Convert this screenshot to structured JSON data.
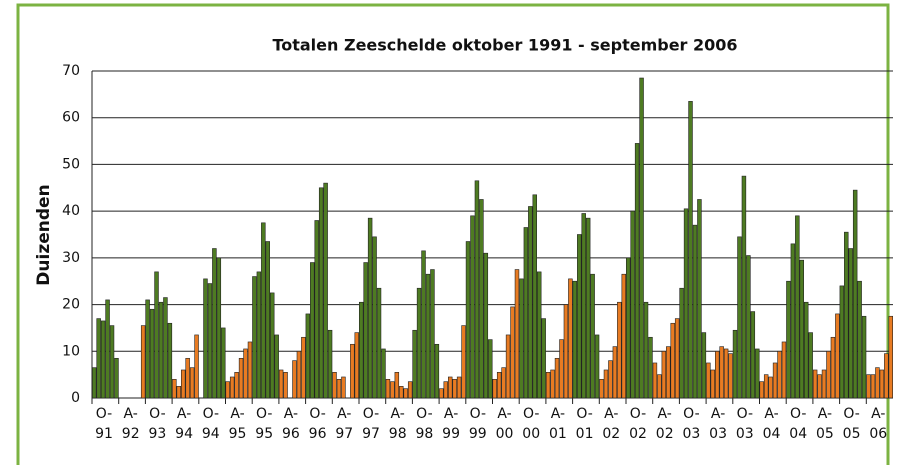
{
  "chart_data": {
    "type": "bar",
    "title": "Totalen Zeeschelde oktober 1991 - september 2006",
    "y_label": "Duizenden",
    "winter_color": "#4e7b22",
    "summer_color": "#e87b22",
    "values": [
      6.5,
      17,
      16.5,
      21,
      15.5,
      8.5,
      null,
      null,
      null,
      null,
      null,
      15.5,
      21,
      19,
      27,
      20.5,
      21.5,
      16,
      4,
      2.5,
      6,
      8.5,
      6.5,
      13.5,
      null,
      25.5,
      24.5,
      32,
      30,
      15,
      3.5,
      4.5,
      5.5,
      8.5,
      10.5,
      12,
      26,
      27,
      37.5,
      33.5,
      22.5,
      13.5,
      6,
      5.5,
      null,
      8,
      10,
      13,
      18,
      29,
      38,
      45,
      46,
      14.5,
      5.5,
      4,
      4.5,
      null,
      11.5,
      14,
      20.5,
      29,
      38.5,
      34.5,
      23.5,
      10.5,
      4,
      3.5,
      5.5,
      2.5,
      2,
      3.5,
      14.5,
      23.5,
      31.5,
      26.5,
      27.5,
      11.5,
      2,
      3.5,
      4.5,
      4,
      4.5,
      15.5,
      33.5,
      39,
      46.5,
      42.5,
      31,
      12.5,
      4,
      5.5,
      6.5,
      13.5,
      19.5,
      27.5,
      25.5,
      36.5,
      41,
      43.5,
      27,
      17,
      5.5,
      6,
      8.5,
      12.5,
      20,
      25.5,
      25,
      35,
      39.5,
      38.5,
      26.5,
      13.5,
      4,
      6,
      8,
      11,
      20.5,
      26.5,
      30,
      40,
      54.5,
      68.5,
      20.5,
      13,
      7.5,
      5,
      10,
      11,
      16,
      17,
      23.5,
      40.5,
      63.5,
      37,
      42.5,
      14,
      7.5,
      6,
      10,
      11,
      10.5,
      9.5,
      14.5,
      34.5,
      47.5,
      30.5,
      18.5,
      10.5,
      3.5,
      5,
      4.5,
      7.5,
      10,
      12,
      25,
      33,
      39,
      29.5,
      20.5,
      14,
      6,
      5,
      6,
      10,
      13,
      18,
      24,
      35.5,
      32,
      44.5,
      25,
      17.5,
      5,
      5,
      6.5,
      6,
      9.5,
      17.5
    ],
    "ylim": [
      0,
      70
    ],
    "yticks": [
      0,
      10,
      20,
      30,
      40,
      50,
      60,
      70
    ],
    "grid": true,
    "xlim": [
      0,
      180
    ],
    "xticks": [
      {
        "value": 0,
        "label": "O-",
        "year": "91"
      },
      {
        "value": 6,
        "label": "A-",
        "year": "92"
      },
      {
        "value": 12,
        "label": "O-",
        "year": "93"
      },
      {
        "value": 18,
        "label": "A-",
        "year": "94"
      },
      {
        "value": 24,
        "label": "O-",
        "year": "94"
      },
      {
        "value": 30,
        "label": "A-",
        "year": "95"
      },
      {
        "value": 36,
        "label": "O-",
        "year": "95"
      },
      {
        "value": 42,
        "label": "A-",
        "year": "96"
      },
      {
        "value": 48,
        "label": "O-",
        "year": "96"
      },
      {
        "value": 54,
        "label": "A-",
        "year": "97"
      },
      {
        "value": 60,
        "label": "O-",
        "year": "97"
      },
      {
        "value": 66,
        "label": "A-",
        "year": "98"
      },
      {
        "value": 72,
        "label": "O-",
        "year": "98"
      },
      {
        "value": 78,
        "label": "A-",
        "year": "99"
      },
      {
        "value": 84,
        "label": "O-",
        "year": "99"
      },
      {
        "value": 90,
        "label": "A-",
        "year": "00"
      },
      {
        "value": 96,
        "label": "O-",
        "year": "00"
      },
      {
        "value": 102,
        "label": "A-",
        "year": "01"
      },
      {
        "value": 108,
        "label": "O-",
        "year": "01"
      },
      {
        "value": 114,
        "label": "A-",
        "year": "02"
      },
      {
        "value": 120,
        "label": "O-",
        "year": "02"
      },
      {
        "value": 126,
        "label": "A-",
        "year": "02"
      },
      {
        "value": 132,
        "label": "O-",
        "year": "03"
      },
      {
        "value": 138,
        "label": "A-",
        "year": "03"
      },
      {
        "value": 144,
        "label": "O-",
        "year": "03"
      },
      {
        "value": 150,
        "label": "A-",
        "year": "04"
      },
      {
        "value": 156,
        "label": "O-",
        "year": "04"
      },
      {
        "value": 162,
        "label": "A-",
        "year": "05"
      },
      {
        "value": 168,
        "label": "O-",
        "year": "05"
      },
      {
        "value": 174,
        "label": "A-",
        "year": "06"
      }
    ]
  }
}
